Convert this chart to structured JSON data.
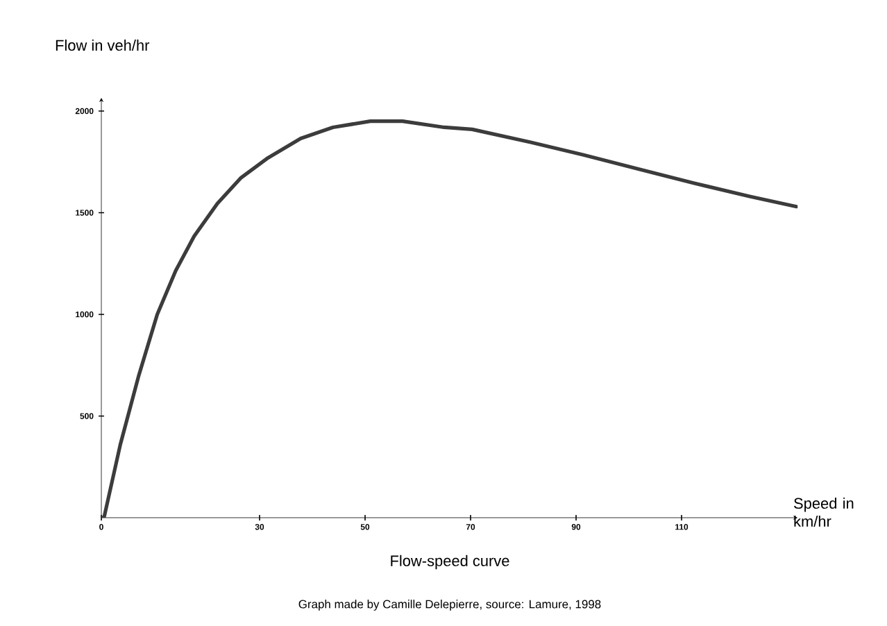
{
  "chart_data": {
    "type": "line",
    "title": "Flow-speed curve",
    "xlabel": "Speed in km/hr",
    "ylabel": "Flow in veh/hr",
    "annotations": [
      "Graph made by Camille Delepierre, source: Lamure, 1998"
    ],
    "series": [
      {
        "color": "#3c3c3c",
        "x": [
          0,
          0.5,
          3.6,
          7.1,
          10.6,
          14.1,
          17.6,
          22,
          26.4,
          31.6,
          37.8,
          43.9,
          51,
          57.1,
          65,
          70.3,
          80.8,
          91.3,
          101.8,
          112.4,
          122.9,
          131.8
        ],
        "values": [
          0,
          0,
          360,
          700,
          1000,
          1215,
          1385,
          1545,
          1670,
          1770,
          1865,
          1920,
          1950,
          1950,
          1920,
          1910,
          1850,
          1785,
          1715,
          1645,
          1580,
          1530
        ]
      }
    ],
    "xlim": [
      0,
      132
    ],
    "ylim": [
      0,
      2065
    ],
    "xticks": [
      0,
      30,
      50,
      70,
      90,
      110
    ],
    "yticks": [
      500,
      1000,
      1500,
      2000
    ],
    "marker": "none",
    "line_style": "solid"
  }
}
